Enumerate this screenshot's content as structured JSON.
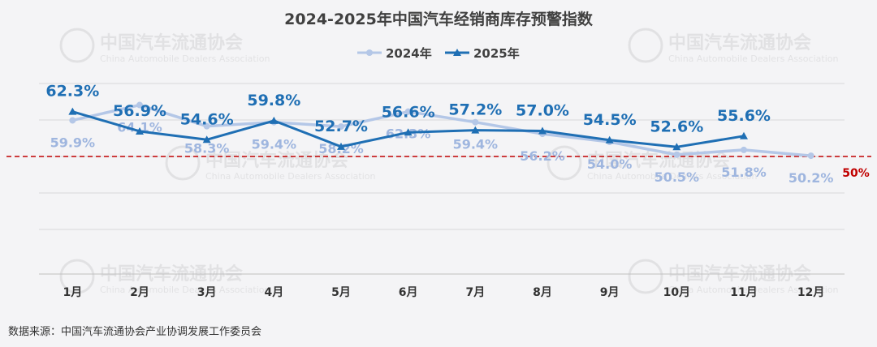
{
  "chart_data": {
    "type": "line",
    "title": "2024-2025年中国汽车经销商库存预警指数",
    "categories": [
      "1月",
      "2月",
      "3月",
      "4月",
      "5月",
      "6月",
      "7月",
      "8月",
      "9月",
      "10月",
      "11月",
      "12月"
    ],
    "series": [
      {
        "name": "2024年",
        "color": "#b4c7e7",
        "values": [
          59.9,
          64.1,
          58.3,
          59.4,
          58.2,
          62.3,
          59.4,
          56.2,
          54.0,
          50.5,
          51.8,
          50.2
        ]
      },
      {
        "name": "2025年",
        "color": "#1f6fb4",
        "values": [
          62.3,
          56.9,
          54.6,
          59.8,
          52.7,
          56.6,
          57.2,
          57.0,
          54.5,
          52.6,
          55.6,
          null
        ]
      }
    ],
    "labels_2024": [
      "59.9%",
      "64.1%",
      "58.3%",
      "59.4%",
      "58.2%",
      "62.3%",
      "59.4%",
      "56.2%",
      "54.0%",
      "50.5%",
      "51.8%",
      "50.2%"
    ],
    "labels_2025": [
      "62.3%",
      "56.9%",
      "54.6%",
      "59.8%",
      "52.7%",
      "56.6%",
      "57.2%",
      "57.0%",
      "54.5%",
      "52.6%",
      "55.6%"
    ],
    "threshold": {
      "value": 50,
      "label": "50%",
      "color": "#c00000"
    },
    "gridlines": true,
    "legend_position": "top-center"
  },
  "source_note": "数据来源：中国汽车流通协会产业协调发展工作委员会",
  "watermark": {
    "name_cn": "中国汽车流通协会",
    "name_en": "China Automobile Dealers Association"
  }
}
